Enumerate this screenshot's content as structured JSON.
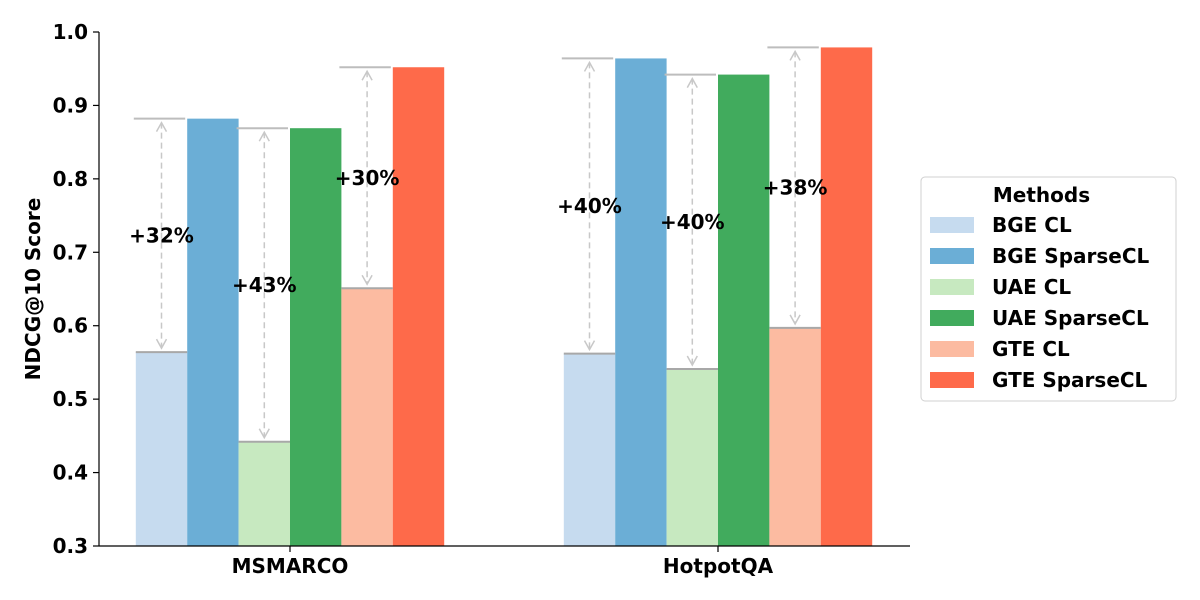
{
  "chart_data": {
    "type": "bar",
    "title": "",
    "xlabel": "",
    "ylabel": "NDCG@10 Score",
    "ylim": [
      0.3,
      1.0
    ],
    "yticks": [
      "0.3",
      "0.4",
      "0.5",
      "0.6",
      "0.7",
      "0.8",
      "0.9",
      "1.0"
    ],
    "categories": [
      "MSMARCO",
      "HotpotQA"
    ],
    "legend": {
      "title": "Methods",
      "position": "center-right"
    },
    "series": [
      {
        "name": "BGE CL",
        "color": "#c6dbef",
        "values": [
          0.564,
          0.562
        ]
      },
      {
        "name": "BGE SparseCL",
        "color": "#6baed6",
        "values": [
          0.882,
          0.964
        ]
      },
      {
        "name": "UAE CL",
        "color": "#c7e9c0",
        "values": [
          0.442,
          0.541
        ]
      },
      {
        "name": "UAE SparseCL",
        "color": "#41ab5d",
        "values": [
          0.869,
          0.942
        ]
      },
      {
        "name": "GTE CL",
        "color": "#fcbba1",
        "values": [
          0.651,
          0.597
        ]
      },
      {
        "name": "GTE SparseCL",
        "color": "#fe6a4a",
        "values": [
          0.952,
          0.979
        ]
      }
    ],
    "annotations": [
      {
        "category": 0,
        "pair": 0,
        "label": "+32%"
      },
      {
        "category": 0,
        "pair": 1,
        "label": "+43%"
      },
      {
        "category": 0,
        "pair": 2,
        "label": "+30%"
      },
      {
        "category": 1,
        "pair": 0,
        "label": "+40%"
      },
      {
        "category": 1,
        "pair": 1,
        "label": "+40%"
      },
      {
        "category": 1,
        "pair": 2,
        "label": "+38%"
      }
    ]
  }
}
